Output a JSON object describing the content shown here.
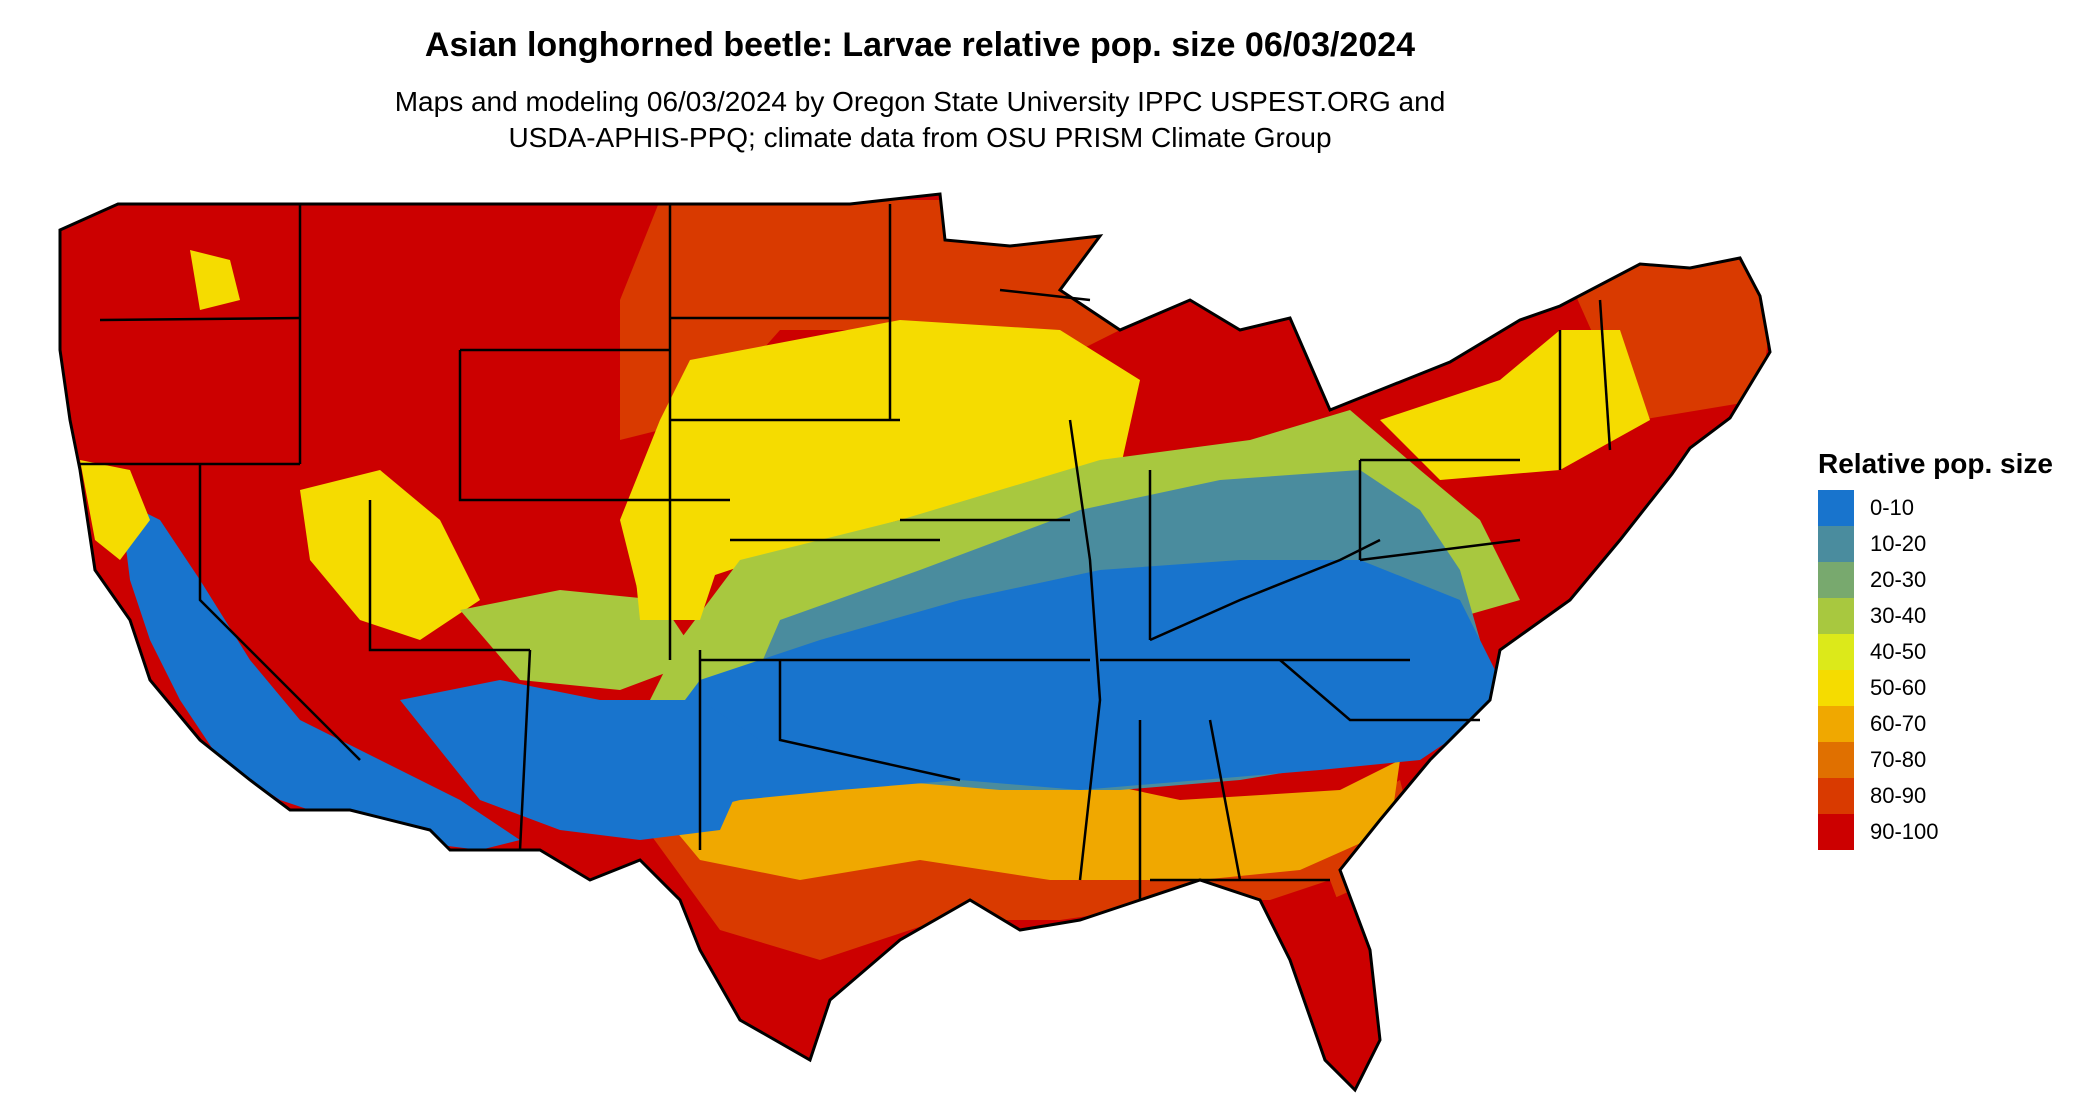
{
  "title": "Asian longhorned beetle: Larvae relative pop. size 06/03/2024",
  "subtitle_line1": "Maps and modeling 06/03/2024 by Oregon State University IPPC USPEST.ORG and",
  "subtitle_line2": "USDA-APHIS-PPQ; climate data from OSU PRISM Climate Group",
  "legend": {
    "title": "Relative pop. size",
    "items": [
      {
        "label": "0-10",
        "color": "#1874CD"
      },
      {
        "label": "10-20",
        "color": "#4A8C9E"
      },
      {
        "label": "20-30",
        "color": "#78A96E"
      },
      {
        "label": "30-40",
        "color": "#A8C83F"
      },
      {
        "label": "40-50",
        "color": "#DCE91A"
      },
      {
        "label": "50-60",
        "color": "#F5DC00"
      },
      {
        "label": "60-70",
        "color": "#F0A800"
      },
      {
        "label": "70-80",
        "color": "#E07000"
      },
      {
        "label": "80-90",
        "color": "#D93A00"
      },
      {
        "label": "90-100",
        "color": "#CC0000"
      }
    ]
  },
  "map": {
    "region": "contiguous-united-states",
    "boundary_color": "#000000"
  }
}
